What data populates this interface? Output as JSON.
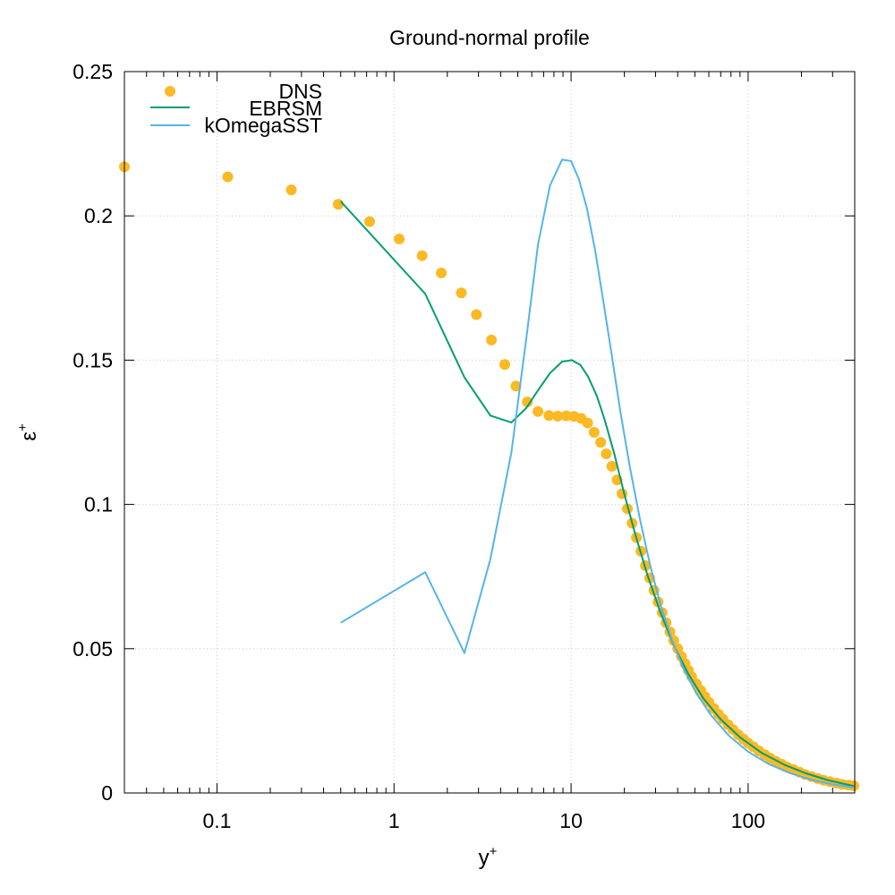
{
  "chart_data": {
    "type": "line",
    "title": "Ground-normal profile",
    "xlabel": "y",
    "xlabel_sup": "+",
    "ylabel": "ε",
    "ylabel_sup": "+",
    "x_scale": "log",
    "xlim": [
      0.03,
      400
    ],
    "ylim": [
      0,
      0.25
    ],
    "x_ticks": [
      0.1,
      1,
      10,
      100
    ],
    "x_tick_labels": [
      "0.1",
      "1",
      "10",
      "100"
    ],
    "y_ticks": [
      0,
      0.05,
      0.1,
      0.15,
      0.2,
      0.25
    ],
    "y_tick_labels": [
      "0",
      "0.05",
      "0.1",
      "0.15",
      "0.2",
      "0.25"
    ],
    "grid": true,
    "legend_position": "top-left",
    "series": [
      {
        "name": "DNS",
        "style": "points",
        "color": "#fbb924",
        "x": [
          0.03,
          0.115,
          0.263,
          0.484,
          0.728,
          1.07,
          1.44,
          1.85,
          2.4,
          2.92,
          3.55,
          4.22,
          4.88,
          5.66,
          6.5,
          7.5,
          8.4,
          9.4,
          10.4,
          11.4,
          12.4,
          13.5,
          14.7,
          15.8,
          17.0,
          18.2,
          19.4,
          20.8,
          22.1,
          23.4,
          24.8,
          26.3,
          27.8,
          29.4,
          31.0,
          32.7,
          34.4,
          36.2,
          38.0,
          40.0,
          42.0,
          44.0,
          46.0,
          48.0,
          51.0,
          54.0,
          57.0,
          60.0,
          64.0,
          68.0,
          72.0,
          77.0,
          82.0,
          88.0,
          94.0,
          100.0,
          107.0,
          115.0,
          124.0,
          133.0,
          143.0,
          154.0,
          166.0,
          180.0,
          195.0,
          210.0,
          228.0,
          247.0,
          267.0,
          290.0,
          315.0,
          340.0,
          370.0,
          395.0
        ],
        "y": [
          0.217,
          0.2135,
          0.209,
          0.204,
          0.198,
          0.192,
          0.1862,
          0.1802,
          0.1733,
          0.1658,
          0.157,
          0.1485,
          0.141,
          0.1355,
          0.1322,
          0.1308,
          0.1306,
          0.1307,
          0.1305,
          0.1298,
          0.1282,
          0.125,
          0.1215,
          0.1175,
          0.1132,
          0.1085,
          0.1037,
          0.0985,
          0.0935,
          0.0885,
          0.0838,
          0.0788,
          0.0745,
          0.0702,
          0.0662,
          0.0625,
          0.059,
          0.0558,
          0.0528,
          0.05,
          0.0473,
          0.0448,
          0.0425,
          0.0403,
          0.0378,
          0.0355,
          0.0334,
          0.0315,
          0.0293,
          0.0273,
          0.0256,
          0.0237,
          0.022,
          0.0202,
          0.0187,
          0.0173,
          0.016,
          0.0146,
          0.0133,
          0.0121,
          0.011,
          0.01,
          0.009,
          0.0081,
          0.0072,
          0.0064,
          0.0057,
          0.005,
          0.0044,
          0.0039,
          0.0034,
          0.003,
          0.0027,
          0.0025
        ]
      },
      {
        "name": "EBRSM",
        "style": "line",
        "color": "#009e73",
        "x": [
          0.5,
          1.5,
          2.5,
          3.5,
          4.6,
          5.6,
          6.5,
          7.6,
          8.9,
          10.1,
          11.3,
          12.5,
          14.0,
          15.5,
          17.5,
          20.0,
          23.0,
          27.0,
          32.0,
          38.0,
          46.0,
          56.0,
          70.0,
          90.0,
          120.0,
          160.0,
          210.0,
          280.0,
          350.0,
          395.0
        ],
        "y": [
          0.205,
          0.173,
          0.144,
          0.1308,
          0.1284,
          0.1335,
          0.1395,
          0.1455,
          0.1495,
          0.15,
          0.1483,
          0.1442,
          0.1375,
          0.1292,
          0.1178,
          0.1035,
          0.0898,
          0.0755,
          0.0625,
          0.0512,
          0.0412,
          0.0327,
          0.0255,
          0.0193,
          0.0138,
          0.0098,
          0.0069,
          0.0045,
          0.0031,
          0.0024
        ]
      },
      {
        "name": "kOmegaSST",
        "style": "line",
        "color": "#56b4e9",
        "x": [
          0.5,
          1.5,
          2.5,
          3.5,
          4.6,
          5.6,
          6.5,
          7.6,
          8.9,
          10.0,
          11.1,
          12.3,
          13.7,
          15.2,
          17.0,
          19.0,
          21.5,
          24.5,
          28.0,
          32.0,
          37.0,
          43.0,
          51.0,
          62.0,
          78.0,
          100.0,
          130.0,
          170.0,
          230.0,
          300.0,
          395.0
        ],
        "y": [
          0.059,
          0.0765,
          0.0485,
          0.081,
          0.118,
          0.158,
          0.19,
          0.2105,
          0.2195,
          0.219,
          0.2125,
          0.2025,
          0.1878,
          0.1705,
          0.1515,
          0.132,
          0.1128,
          0.0948,
          0.0788,
          0.0652,
          0.0533,
          0.0433,
          0.0345,
          0.0268,
          0.0198,
          0.0143,
          0.0101,
          0.007,
          0.0045,
          0.003,
          0.0019
        ]
      }
    ]
  }
}
